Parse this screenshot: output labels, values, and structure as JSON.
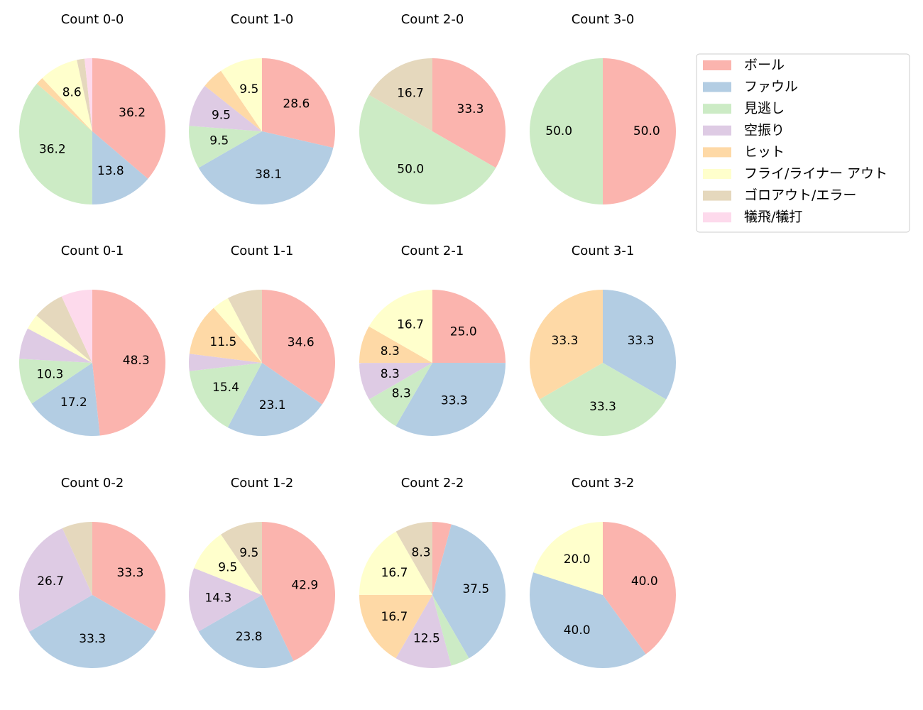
{
  "legend": {
    "names": [
      "ボール",
      "ファウル",
      "見逃し",
      "空振り",
      "ヒット",
      "フライ/ライナー アウト",
      "ゴロアウト/エラー",
      "犠飛/犠打"
    ],
    "colors": [
      "#fbb4ae",
      "#b3cde3",
      "#ccebc5",
      "#decbe4",
      "#fed9a6",
      "#ffffcc",
      "#e5d8bd",
      "#fddaec"
    ]
  },
  "chart_data": [
    {
      "type": "pie",
      "title": "Count 0-0",
      "values": [
        36.2,
        13.8,
        36.2,
        0,
        1.7,
        8.6,
        1.7,
        1.7
      ],
      "value_labels": [
        "36.2",
        "13.8",
        "36.2",
        null,
        null,
        "8.6",
        null,
        null
      ]
    },
    {
      "type": "pie",
      "title": "Count 1-0",
      "values": [
        28.6,
        38.1,
        9.5,
        9.5,
        4.8,
        9.5,
        0,
        0
      ],
      "value_labels": [
        "28.6",
        "38.1",
        "9.5",
        "9.5",
        null,
        "9.5",
        null,
        null
      ]
    },
    {
      "type": "pie",
      "title": "Count 2-0",
      "values": [
        33.3,
        0,
        50.0,
        0,
        0,
        0,
        16.7,
        0
      ],
      "value_labels": [
        "33.3",
        null,
        "50.0",
        null,
        null,
        null,
        "16.7",
        null
      ]
    },
    {
      "type": "pie",
      "title": "Count 3-0",
      "values": [
        50.0,
        0,
        50.0,
        0,
        0,
        0,
        0,
        0
      ],
      "value_labels": [
        "50.0",
        null,
        "50.0",
        null,
        null,
        null,
        null,
        null
      ]
    },
    {
      "type": "pie",
      "title": "Count 0-1",
      "values": [
        48.3,
        17.2,
        10.3,
        6.9,
        0,
        3.4,
        6.9,
        6.9
      ],
      "value_labels": [
        "48.3",
        "17.2",
        "10.3",
        null,
        null,
        null,
        null,
        null
      ]
    },
    {
      "type": "pie",
      "title": "Count 1-1",
      "values": [
        34.6,
        23.1,
        15.4,
        3.8,
        11.5,
        3.8,
        7.7,
        0
      ],
      "value_labels": [
        "34.6",
        "23.1",
        "15.4",
        null,
        "11.5",
        null,
        null,
        null
      ]
    },
    {
      "type": "pie",
      "title": "Count 2-1",
      "values": [
        25.0,
        33.3,
        8.3,
        8.3,
        8.3,
        16.7,
        0,
        0
      ],
      "value_labels": [
        "25.0",
        "33.3",
        "8.3",
        "8.3",
        "8.3",
        "16.7",
        null,
        null
      ]
    },
    {
      "type": "pie",
      "title": "Count 3-1",
      "values": [
        0,
        33.3,
        33.3,
        0,
        33.3,
        0,
        0,
        0
      ],
      "value_labels": [
        null,
        "33.3",
        "33.3",
        null,
        "33.3",
        null,
        null,
        null
      ]
    },
    {
      "type": "pie",
      "title": "Count 0-2",
      "values": [
        33.3,
        33.3,
        0,
        26.7,
        0,
        0,
        6.7,
        0
      ],
      "value_labels": [
        "33.3",
        "33.3",
        null,
        "26.7",
        null,
        null,
        null,
        null
      ]
    },
    {
      "type": "pie",
      "title": "Count 1-2",
      "values": [
        42.9,
        23.8,
        0,
        14.3,
        0,
        9.5,
        9.5,
        0
      ],
      "value_labels": [
        "42.9",
        "23.8",
        null,
        "14.3",
        null,
        "9.5",
        "9.5",
        null
      ]
    },
    {
      "type": "pie",
      "title": "Count 2-2",
      "values": [
        4.2,
        37.5,
        4.2,
        12.5,
        16.7,
        16.7,
        8.3,
        0
      ],
      "value_labels": [
        null,
        "37.5",
        null,
        "12.5",
        "16.7",
        "16.7",
        "8.3",
        null
      ]
    },
    {
      "type": "pie",
      "title": "Count 3-2",
      "values": [
        40.0,
        40.0,
        0,
        0,
        0,
        20.0,
        0,
        0
      ],
      "value_labels": [
        "40.0",
        "40.0",
        null,
        null,
        null,
        "20.0",
        null,
        null
      ]
    }
  ]
}
